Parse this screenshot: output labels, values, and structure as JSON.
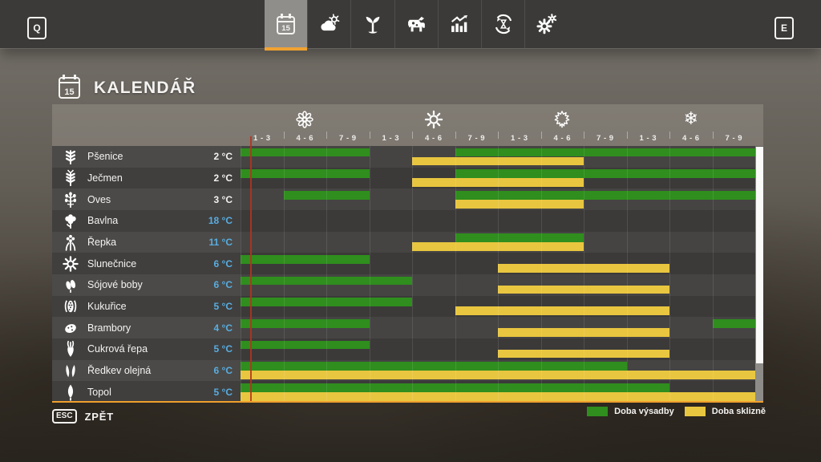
{
  "topbar": {
    "left_key": "Q",
    "right_key": "E",
    "tabs": [
      {
        "name": "calendar",
        "icon": "calendar-icon",
        "day": "15",
        "selected": true
      },
      {
        "name": "weather",
        "icon": "weather-icon",
        "selected": false
      },
      {
        "name": "crops",
        "icon": "sprout-icon",
        "selected": false
      },
      {
        "name": "animals",
        "icon": "cow-icon",
        "selected": false
      },
      {
        "name": "statistics",
        "icon": "statistics-icon",
        "selected": false
      },
      {
        "name": "economy",
        "icon": "cycle-hourglass-icon",
        "selected": false
      },
      {
        "name": "settings",
        "icon": "gears-icon",
        "selected": false
      }
    ]
  },
  "page": {
    "title": "KALENDÁŘ",
    "title_day": "15"
  },
  "calendar": {
    "seasons": [
      {
        "name": "spring",
        "icon": "flower-icon"
      },
      {
        "name": "summer",
        "icon": "sun-icon"
      },
      {
        "name": "autumn",
        "icon": "maple-leaf-icon"
      },
      {
        "name": "winter",
        "icon": "snowflake-icon"
      }
    ],
    "period_labels": [
      "1 - 3",
      "4 - 6",
      "7 - 9"
    ],
    "columns_total": 12,
    "current_date_column": 0.13,
    "selected_crop_index": 11,
    "colors": {
      "planting": "#2f8e1d",
      "harvest": "#e9c63f",
      "accent": "#ef9f2d",
      "date_line": "#b23420",
      "temp_blue": "#58ade0"
    },
    "crops": [
      {
        "name": "Pšenice",
        "icon": "wheat-icon",
        "temp": "2 °C",
        "temp_color": "white",
        "planting": [
          [
            0,
            3
          ],
          [
            5,
            12
          ]
        ],
        "harvest": [
          [
            4,
            8
          ]
        ]
      },
      {
        "name": "Ječmen",
        "icon": "barley-icon",
        "temp": "2 °C",
        "temp_color": "white",
        "planting": [
          [
            0,
            3
          ],
          [
            5,
            12
          ]
        ],
        "harvest": [
          [
            4,
            8
          ]
        ]
      },
      {
        "name": "Oves",
        "icon": "oat-icon",
        "temp": "3 °C",
        "temp_color": "white",
        "planting": [
          [
            1,
            3
          ],
          [
            5,
            12
          ]
        ],
        "harvest": [
          [
            5,
            8
          ]
        ]
      },
      {
        "name": "Bavlna",
        "icon": "cotton-icon",
        "temp": "18 °C",
        "temp_color": "blue",
        "planting": [],
        "harvest": []
      },
      {
        "name": "Řepka",
        "icon": "canola-icon",
        "temp": "11 °C",
        "temp_color": "blue",
        "planting": [
          [
            5,
            8
          ]
        ],
        "harvest": [
          [
            4,
            8
          ]
        ]
      },
      {
        "name": "Slunečnice",
        "icon": "sunflower-icon",
        "temp": "6 °C",
        "temp_color": "blue",
        "planting": [
          [
            0,
            3
          ]
        ],
        "harvest": [
          [
            6,
            10
          ]
        ]
      },
      {
        "name": "Sójové boby",
        "icon": "soybean-icon",
        "temp": "6 °C",
        "temp_color": "blue",
        "planting": [
          [
            0,
            4
          ]
        ],
        "harvest": [
          [
            6,
            10
          ]
        ]
      },
      {
        "name": "Kukuřice",
        "icon": "corn-icon",
        "temp": "5 °C",
        "temp_color": "blue",
        "planting": [
          [
            0,
            4
          ]
        ],
        "harvest": [
          [
            5,
            10
          ]
        ]
      },
      {
        "name": "Brambory",
        "icon": "potato-icon",
        "temp": "4 °C",
        "temp_color": "blue",
        "planting": [
          [
            0,
            3
          ],
          [
            11,
            12
          ]
        ],
        "harvest": [
          [
            6,
            10
          ]
        ]
      },
      {
        "name": "Cukrová řepa",
        "icon": "sugar-beet-icon",
        "temp": "5 °C",
        "temp_color": "blue",
        "planting": [
          [
            0,
            3
          ]
        ],
        "harvest": [
          [
            6,
            10
          ]
        ]
      },
      {
        "name": "Ředkev olejná",
        "icon": "oilseed-radish-icon",
        "temp": "6 °C",
        "temp_color": "blue",
        "planting": [
          [
            0,
            9
          ]
        ],
        "harvest": [
          [
            0,
            12
          ]
        ]
      },
      {
        "name": "Topol",
        "icon": "poplar-icon",
        "temp": "5 °C",
        "temp_color": "blue",
        "planting": [
          [
            0,
            10
          ]
        ],
        "harvest": [
          [
            0,
            12
          ]
        ]
      }
    ]
  },
  "footer": {
    "back_key": "ESC",
    "back_label": "ZPĚT"
  },
  "legend": [
    {
      "label": "Doba výsadby",
      "color": "#2f8e1d"
    },
    {
      "label": "Doba sklizně",
      "color": "#e9c63f"
    }
  ],
  "chart_data": {
    "type": "gantt",
    "title": "KALENDÁŘ",
    "x_axis": "4 seasons (spring, summer, autumn, winter) × 3 periods each; labels 1-3, 4-6, 7-9; 12 columns total (units 0-12)",
    "legend": [
      "Doba výsadby (green)",
      "Doba sklizně (yellow)"
    ],
    "current_date_marker_column": 0.13,
    "series": [
      {
        "name": "Pšenice",
        "germination_temp_c": 2,
        "planting": [
          [
            0,
            3
          ],
          [
            5,
            12
          ]
        ],
        "harvest": [
          [
            4,
            8
          ]
        ]
      },
      {
        "name": "Ječmen",
        "germination_temp_c": 2,
        "planting": [
          [
            0,
            3
          ],
          [
            5,
            12
          ]
        ],
        "harvest": [
          [
            4,
            8
          ]
        ]
      },
      {
        "name": "Oves",
        "germination_temp_c": 3,
        "planting": [
          [
            1,
            3
          ],
          [
            5,
            12
          ]
        ],
        "harvest": [
          [
            5,
            8
          ]
        ]
      },
      {
        "name": "Bavlna",
        "germination_temp_c": 18,
        "planting": [],
        "harvest": []
      },
      {
        "name": "Řepka",
        "germination_temp_c": 11,
        "planting": [
          [
            5,
            8
          ]
        ],
        "harvest": [
          [
            4,
            8
          ]
        ]
      },
      {
        "name": "Slunečnice",
        "germination_temp_c": 6,
        "planting": [
          [
            0,
            3
          ]
        ],
        "harvest": [
          [
            6,
            10
          ]
        ]
      },
      {
        "name": "Sójové boby",
        "germination_temp_c": 6,
        "planting": [
          [
            0,
            4
          ]
        ],
        "harvest": [
          [
            6,
            10
          ]
        ]
      },
      {
        "name": "Kukuřice",
        "germination_temp_c": 5,
        "planting": [
          [
            0,
            4
          ]
        ],
        "harvest": [
          [
            5,
            10
          ]
        ]
      },
      {
        "name": "Brambory",
        "germination_temp_c": 4,
        "planting": [
          [
            0,
            3
          ],
          [
            11,
            12
          ]
        ],
        "harvest": [
          [
            6,
            10
          ]
        ]
      },
      {
        "name": "Cukrová řepa",
        "germination_temp_c": 5,
        "planting": [
          [
            0,
            3
          ]
        ],
        "harvest": [
          [
            6,
            10
          ]
        ]
      },
      {
        "name": "Ředkev olejná",
        "germination_temp_c": 6,
        "planting": [
          [
            0,
            9
          ]
        ],
        "harvest": [
          [
            0,
            12
          ]
        ]
      },
      {
        "name": "Topol",
        "germination_temp_c": 5,
        "planting": [
          [
            0,
            10
          ]
        ],
        "harvest": [
          [
            0,
            12
          ]
        ]
      }
    ]
  }
}
